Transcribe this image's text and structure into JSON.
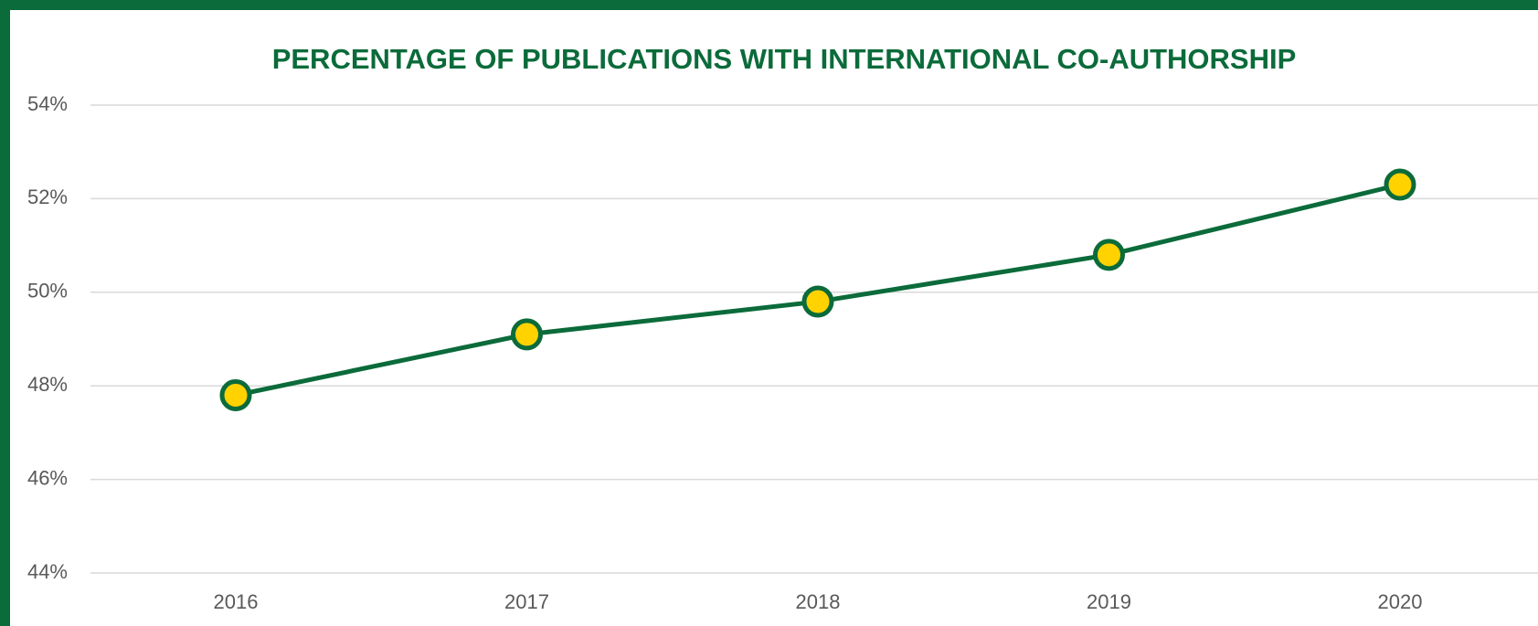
{
  "chart_data": {
    "type": "line",
    "title": "PERCENTAGE OF PUBLICATIONS WITH INTERNATIONAL CO-AUTHORSHIP",
    "categories": [
      "2016",
      "2017",
      "2018",
      "2019",
      "2020"
    ],
    "series": [
      {
        "color": "#0b6b3a",
        "marker_color": "#ffd200",
        "values": [
          47.8,
          49.1,
          49.8,
          50.8,
          52.3
        ]
      }
    ],
    "ylim": [
      44,
      54
    ],
    "yticks": [
      {
        "value": 44,
        "label": "44%"
      },
      {
        "value": 46,
        "label": "46%"
      },
      {
        "value": 48,
        "label": "48%"
      },
      {
        "value": 50,
        "label": "50%"
      },
      {
        "value": 52,
        "label": "52%"
      },
      {
        "value": 54,
        "label": "54%"
      }
    ],
    "grid": true
  }
}
